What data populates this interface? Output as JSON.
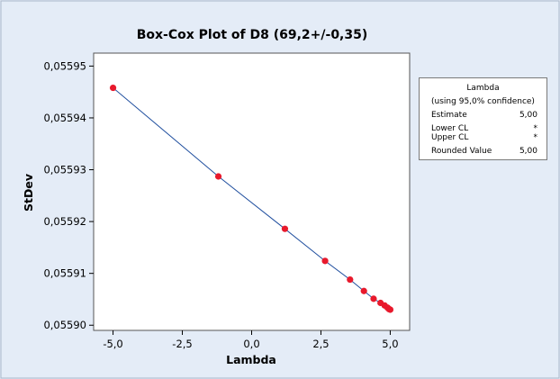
{
  "chart_data": {
    "type": "scatter",
    "title": "Box-Cox Plot of D8 (69,2+/-0,35)",
    "xlabel": "Lambda",
    "ylabel": "StDev",
    "xlim": [
      -5.7,
      5.7
    ],
    "ylim": [
      0.055899,
      0.0559525
    ],
    "x_ticks": [
      {
        "value": -5.0,
        "label": "-5,0"
      },
      {
        "value": -2.5,
        "label": "-2,5"
      },
      {
        "value": 0.0,
        "label": "0,0"
      },
      {
        "value": 2.5,
        "label": "2,5"
      },
      {
        "value": 5.0,
        "label": "5,0"
      }
    ],
    "y_ticks": [
      {
        "value": 0.0559,
        "label": "0,05590"
      },
      {
        "value": 0.05591,
        "label": "0,05591"
      },
      {
        "value": 0.05592,
        "label": "0,05592"
      },
      {
        "value": 0.05593,
        "label": "0,05593"
      },
      {
        "value": 0.05594,
        "label": "0,05594"
      },
      {
        "value": 0.05595,
        "label": "0,05595"
      }
    ],
    "grid": false,
    "legend": "none",
    "line_color": "#1f4e9e",
    "point_color": "#e8192c",
    "points": [
      {
        "x": -5.0,
        "y": 0.0559458
      },
      {
        "x": -1.2,
        "y": 0.0559287
      },
      {
        "x": 1.2,
        "y": 0.0559186
      },
      {
        "x": 2.65,
        "y": 0.0559124
      },
      {
        "x": 3.55,
        "y": 0.0559088
      },
      {
        "x": 4.05,
        "y": 0.0559066
      },
      {
        "x": 4.4,
        "y": 0.0559051
      },
      {
        "x": 4.65,
        "y": 0.0559043
      },
      {
        "x": 4.8,
        "y": 0.0559038
      },
      {
        "x": 4.9,
        "y": 0.0559034
      },
      {
        "x": 4.96,
        "y": 0.0559031
      },
      {
        "x": 5.0,
        "y": 0.055903
      }
    ]
  },
  "lambda_box": {
    "title": "Lambda",
    "subtitle": "(using 95,0% confidence)",
    "rows": [
      {
        "label": "Estimate",
        "value": "5,00"
      },
      {
        "label": "Lower CL",
        "value": "*"
      },
      {
        "label": "Upper CL",
        "value": "*"
      },
      {
        "label": "Rounded Value",
        "value": "5,00"
      }
    ]
  }
}
